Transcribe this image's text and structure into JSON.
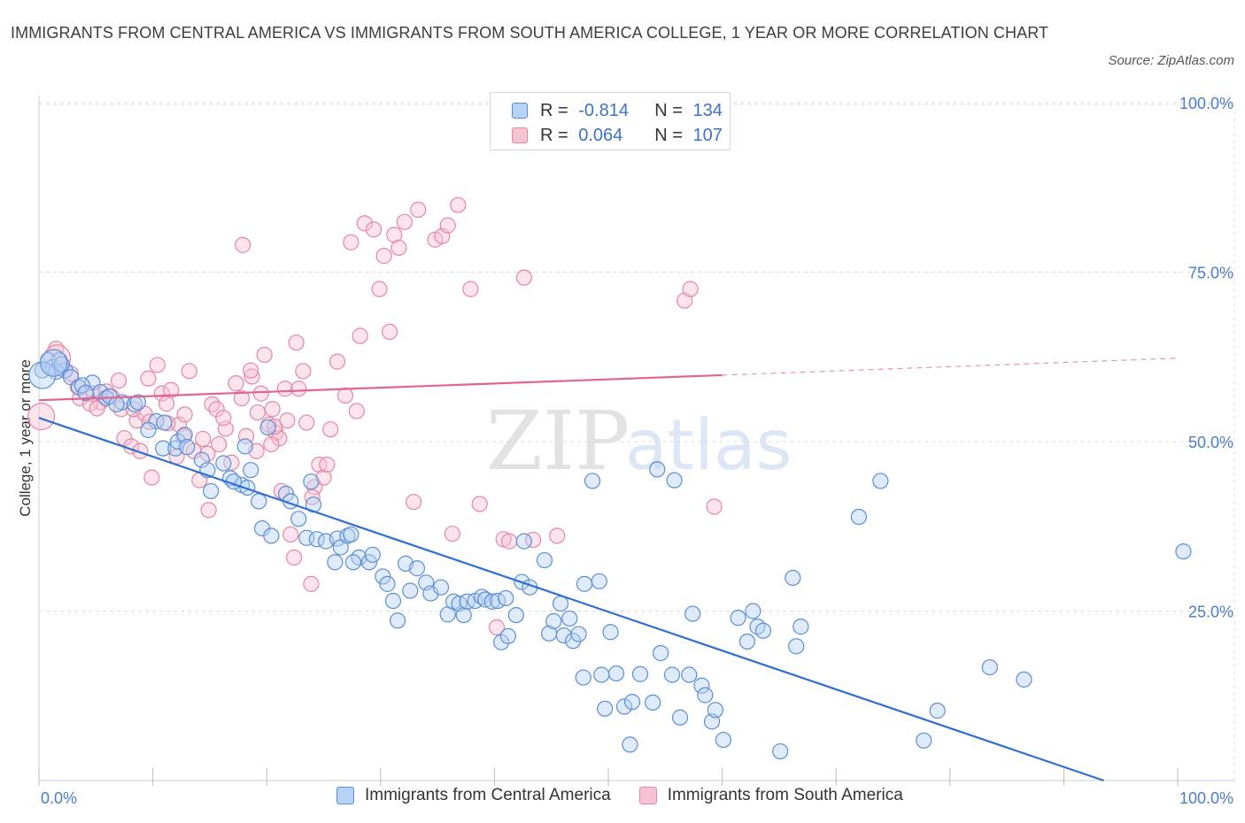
{
  "title": "IMMIGRANTS FROM CENTRAL AMERICA VS IMMIGRANTS FROM SOUTH AMERICA COLLEGE, 1 YEAR OR MORE CORRELATION CHART",
  "source": "Source: ZipAtlas.com",
  "watermark": {
    "zip": "ZIP",
    "atlas": "atlas"
  },
  "colors": {
    "blue_fill": "#b7d2f4",
    "blue_stroke": "#5a8ed6",
    "blue_line": "#2e6fd0",
    "pink_fill": "#f6c3d3",
    "pink_stroke": "#e686a6",
    "pink_line": "#e06590",
    "tick_text": "#4a7cc8",
    "grid": "#dcdcdc"
  },
  "legend": {
    "rows": [
      {
        "r_label": "R =",
        "r_value": "-0.814",
        "n_label": "N =",
        "n_value": "134"
      },
      {
        "r_label": "R =",
        "r_value": "0.064",
        "n_label": "N =",
        "n_value": "107"
      }
    ]
  },
  "bottom_legend": [
    "Immigrants from Central America",
    "Immigrants from South America"
  ],
  "chart_data": {
    "type": "scatter",
    "title": "IMMIGRANTS FROM CENTRAL AMERICA VS IMMIGRANTS FROM SOUTH AMERICA COLLEGE, 1 YEAR OR MORE CORRELATION CHART",
    "xlabel": "",
    "ylabel": "College, 1 year or more",
    "xlim": [
      0,
      100
    ],
    "ylim": [
      0,
      100
    ],
    "x_tick_labels": [
      "0.0%",
      "100.0%"
    ],
    "y_ticks": [
      25,
      50,
      75,
      100
    ],
    "y_tick_labels": [
      "25.0%",
      "50.0%",
      "75.0%",
      "100.0%"
    ],
    "grid": true,
    "legend_placement": "top-center",
    "series": [
      {
        "name": "Immigrants from Central America",
        "color": "#5a8ed6",
        "trend": {
          "x": [
            0,
            93.5
          ],
          "y": [
            53.5,
            0
          ],
          "style": "solid"
        },
        "points": [
          [
            0.3,
            60.5
          ],
          [
            0.8,
            62
          ],
          [
            1.2,
            61
          ],
          [
            1.8,
            62
          ],
          [
            2.3,
            60.5
          ],
          [
            2.8,
            59.5
          ],
          [
            3.5,
            58
          ],
          [
            4.7,
            58.7
          ],
          [
            3.8,
            58.3
          ],
          [
            5.4,
            57.3
          ],
          [
            5.9,
            56.4
          ],
          [
            7.3,
            55.8
          ],
          [
            6.2,
            56.7
          ],
          [
            8.4,
            55.5
          ],
          [
            8.7,
            55.8
          ],
          [
            10.3,
            53
          ],
          [
            9.6,
            51.7
          ],
          [
            10.9,
            49
          ],
          [
            12,
            49
          ],
          [
            11,
            52.8
          ],
          [
            12.2,
            50
          ],
          [
            12.8,
            51
          ],
          [
            13,
            49.2
          ],
          [
            14.3,
            47.3
          ],
          [
            14.8,
            45.8
          ],
          [
            15.1,
            42.7
          ],
          [
            16.2,
            46.8
          ],
          [
            16.8,
            44.6
          ],
          [
            17.8,
            43.6
          ],
          [
            18.3,
            43.2
          ],
          [
            17.1,
            44.1
          ],
          [
            18.6,
            45.8
          ],
          [
            18.1,
            49.3
          ],
          [
            19.3,
            41.2
          ],
          [
            19.6,
            37.2
          ],
          [
            20.4,
            36.1
          ],
          [
            20.1,
            52.1
          ],
          [
            21.7,
            42.3
          ],
          [
            22.1,
            41.2
          ],
          [
            22.8,
            38.6
          ],
          [
            23.5,
            35.8
          ],
          [
            23.9,
            44.1
          ],
          [
            24.1,
            40.7
          ],
          [
            24.4,
            35.6
          ],
          [
            25.2,
            35.3
          ],
          [
            26.2,
            35.7
          ],
          [
            26.5,
            34.4
          ],
          [
            27.1,
            36.1
          ],
          [
            27.4,
            36.3
          ],
          [
            28.1,
            32.9
          ],
          [
            27.6,
            32.2
          ],
          [
            26,
            32.2
          ],
          [
            29,
            32.2
          ],
          [
            29.3,
            33.3
          ],
          [
            30.2,
            30.1
          ],
          [
            30.6,
            29
          ],
          [
            31.1,
            26.5
          ],
          [
            31.5,
            23.6
          ],
          [
            32.2,
            32
          ],
          [
            32.6,
            28
          ],
          [
            33.2,
            31.3
          ],
          [
            34,
            29.2
          ],
          [
            34.4,
            27.6
          ],
          [
            35.3,
            28.5
          ],
          [
            35.9,
            24.5
          ],
          [
            36.4,
            26.4
          ],
          [
            36.9,
            26.1
          ],
          [
            37.3,
            24.4
          ],
          [
            37.6,
            26.4
          ],
          [
            38.3,
            26.5
          ],
          [
            38.9,
            27.1
          ],
          [
            39.2,
            26.7
          ],
          [
            39.8,
            26.4
          ],
          [
            40.3,
            26.5
          ],
          [
            41,
            26.9
          ],
          [
            40.6,
            20.4
          ],
          [
            41.2,
            21.3
          ],
          [
            41.9,
            24.4
          ],
          [
            42.4,
            29.3
          ],
          [
            42.6,
            35.3
          ],
          [
            43.1,
            28.5
          ],
          [
            44.4,
            32.5
          ],
          [
            44.8,
            21.7
          ],
          [
            45.2,
            23.5
          ],
          [
            45.8,
            26.1
          ],
          [
            46.6,
            23.9
          ],
          [
            46.1,
            21.4
          ],
          [
            46.9,
            20.6
          ],
          [
            47.8,
            15.2
          ],
          [
            47.4,
            21.6
          ],
          [
            47.9,
            29
          ],
          [
            48.6,
            44.2
          ],
          [
            49.2,
            29.4
          ],
          [
            50.2,
            21.9
          ],
          [
            49.4,
            15.6
          ],
          [
            50.7,
            15.8
          ],
          [
            49.7,
            10.6
          ],
          [
            51.4,
            10.9
          ],
          [
            52.1,
            11.6
          ],
          [
            52.8,
            15.7
          ],
          [
            51.9,
            5.3
          ],
          [
            53.9,
            11.5
          ],
          [
            54.3,
            45.9
          ],
          [
            54.6,
            18.8
          ],
          [
            55.8,
            44.3
          ],
          [
            55.6,
            15.6
          ],
          [
            56.3,
            9.3
          ],
          [
            57.4,
            24.6
          ],
          [
            57.1,
            15.6
          ],
          [
            58.2,
            14
          ],
          [
            58.5,
            12.6
          ],
          [
            59.1,
            8.7
          ],
          [
            59.4,
            10.4
          ],
          [
            60.1,
            6
          ],
          [
            61.4,
            24
          ],
          [
            62.7,
            25
          ],
          [
            62.2,
            20.5
          ],
          [
            63.1,
            22.7
          ],
          [
            63.6,
            22.1
          ],
          [
            65.1,
            4.3
          ],
          [
            66.2,
            29.9
          ],
          [
            66.5,
            19.8
          ],
          [
            66.9,
            22.7
          ],
          [
            72,
            38.9
          ],
          [
            73.9,
            44.2
          ],
          [
            77.7,
            5.9
          ],
          [
            78.9,
            10.3
          ],
          [
            83.5,
            16.7
          ],
          [
            86.5,
            14.9
          ],
          [
            100.5,
            33.8
          ],
          [
            1.5,
            60.3
          ],
          [
            2,
            61.4
          ],
          [
            4.1,
            57.2
          ],
          [
            6.8,
            55.5
          ]
        ],
        "big_points": [
          [
            0.3,
            59.8
          ],
          [
            1.3,
            61.6
          ]
        ]
      },
      {
        "name": "Immigrants from South America",
        "color": "#e686a6",
        "trend": {
          "x": [
            0,
            60
          ],
          "y": [
            56.1,
            59.8
          ],
          "dashed_extension_to": [
            100,
            62.3
          ],
          "style": "solid"
        },
        "points": [
          [
            1.5,
            63.7
          ],
          [
            2,
            60.8
          ],
          [
            2.8,
            60
          ],
          [
            3.4,
            58.1
          ],
          [
            4.2,
            57
          ],
          [
            4.8,
            57.1
          ],
          [
            5.4,
            55.8
          ],
          [
            5.9,
            57.4
          ],
          [
            6.4,
            56.6
          ],
          [
            7,
            59
          ],
          [
            7.2,
            54.8
          ],
          [
            7.5,
            50.5
          ],
          [
            8.1,
            49.3
          ],
          [
            8.6,
            53.1
          ],
          [
            8.9,
            48.6
          ],
          [
            9.3,
            54.1
          ],
          [
            9.6,
            59.3
          ],
          [
            9.9,
            44.7
          ],
          [
            10.4,
            61.3
          ],
          [
            10.8,
            57.1
          ],
          [
            11.2,
            55.6
          ],
          [
            11.6,
            57.6
          ],
          [
            12.1,
            47.8
          ],
          [
            12.3,
            52.5
          ],
          [
            12.8,
            54
          ],
          [
            13.2,
            60.4
          ],
          [
            13.6,
            48.6
          ],
          [
            14.1,
            44.3
          ],
          [
            14.4,
            50.4
          ],
          [
            14.8,
            48.2
          ],
          [
            15.2,
            55.5
          ],
          [
            14.9,
            39.9
          ],
          [
            15.8,
            49.6
          ],
          [
            16.4,
            51.9
          ],
          [
            16.9,
            46.9
          ],
          [
            17.3,
            58.6
          ],
          [
            17.8,
            56.4
          ],
          [
            18.2,
            50.8
          ],
          [
            18.7,
            59.6
          ],
          [
            19.1,
            48.6
          ],
          [
            18.6,
            60.5
          ],
          [
            19.5,
            57.1
          ],
          [
            19.8,
            62.8
          ],
          [
            20.2,
            52.5
          ],
          [
            20.5,
            54.8
          ],
          [
            20.8,
            51.3
          ],
          [
            21.1,
            50.5
          ],
          [
            21.3,
            42.7
          ],
          [
            21.6,
            57.8
          ],
          [
            21.8,
            53.1
          ],
          [
            22.1,
            36.3
          ],
          [
            22.4,
            32.9
          ],
          [
            22.8,
            57.8
          ],
          [
            22.6,
            64.6
          ],
          [
            23.2,
            60.4
          ],
          [
            23.5,
            52.8
          ],
          [
            23.9,
            29
          ],
          [
            24.2,
            43.3
          ],
          [
            24.6,
            46.6
          ],
          [
            25,
            44.7
          ],
          [
            25.3,
            46.6
          ],
          [
            25.6,
            51.8
          ],
          [
            26.2,
            61.8
          ],
          [
            26.9,
            56.8
          ],
          [
            27.4,
            79.4
          ],
          [
            27.9,
            54.5
          ],
          [
            28.2,
            65.6
          ],
          [
            28.6,
            82.2
          ],
          [
            29.4,
            81.3
          ],
          [
            29.9,
            72.5
          ],
          [
            30.3,
            77.4
          ],
          [
            30.8,
            66.2
          ],
          [
            31.2,
            80.5
          ],
          [
            31.6,
            78.6
          ],
          [
            32.1,
            82.4
          ],
          [
            32.9,
            41.1
          ],
          [
            33.3,
            84.2
          ],
          [
            34.8,
            79.8
          ],
          [
            35.4,
            80.3
          ],
          [
            35.9,
            81.9
          ],
          [
            36.3,
            36.4
          ],
          [
            36.8,
            84.9
          ],
          [
            37.9,
            72.5
          ],
          [
            38.7,
            40.8
          ],
          [
            40.2,
            22.6
          ],
          [
            40.8,
            35.6
          ],
          [
            41.3,
            35.3
          ],
          [
            42.6,
            74.2
          ],
          [
            43.4,
            35.5
          ],
          [
            45.5,
            36.1
          ],
          [
            56.7,
            70.8
          ],
          [
            57.2,
            72.5
          ],
          [
            59.3,
            40.4
          ],
          [
            24,
            41.8
          ],
          [
            17.9,
            79
          ],
          [
            15.6,
            54.8
          ],
          [
            16.2,
            53.5
          ],
          [
            19.2,
            54.3
          ],
          [
            3.6,
            56.4
          ],
          [
            4.5,
            55.6
          ],
          [
            5.1,
            54.9
          ],
          [
            8.3,
            54.8
          ],
          [
            9.7,
            52.9
          ],
          [
            11.3,
            52.7
          ],
          [
            12.7,
            50.8
          ],
          [
            20.4,
            49.6
          ],
          [
            20.7,
            52.2
          ]
        ],
        "big_points": [
          [
            0.2,
            53.7
          ],
          [
            1.6,
            62.3
          ]
        ]
      }
    ]
  }
}
